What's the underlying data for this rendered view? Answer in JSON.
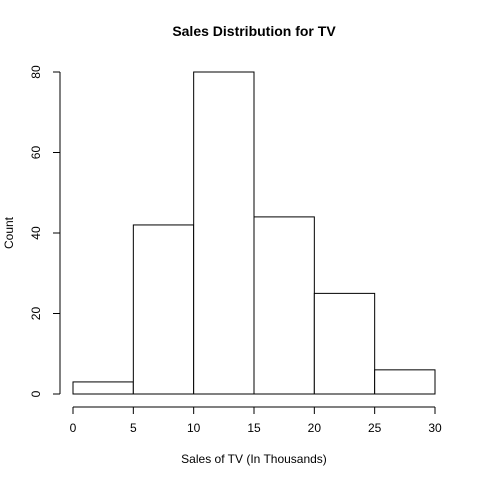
{
  "chart_data": {
    "type": "bar",
    "title": "Sales Distribution for TV",
    "xlabel": "Sales of TV (In Thousands)",
    "ylabel": "Count",
    "bins": [
      {
        "start": 0,
        "end": 5,
        "count": 3
      },
      {
        "start": 5,
        "end": 10,
        "count": 42
      },
      {
        "start": 10,
        "end": 15,
        "count": 80
      },
      {
        "start": 15,
        "end": 20,
        "count": 44
      },
      {
        "start": 20,
        "end": 25,
        "count": 25
      },
      {
        "start": 25,
        "end": 30,
        "count": 6
      }
    ],
    "xlim": [
      0,
      30
    ],
    "ylim": [
      0,
      80
    ],
    "x_ticks": [
      "0",
      "5",
      "10",
      "15",
      "20",
      "25",
      "30"
    ],
    "y_ticks": [
      "0",
      "20",
      "40",
      "60",
      "80"
    ],
    "grid": false,
    "bar_fill": "#ffffff",
    "bar_stroke": "#000000"
  }
}
